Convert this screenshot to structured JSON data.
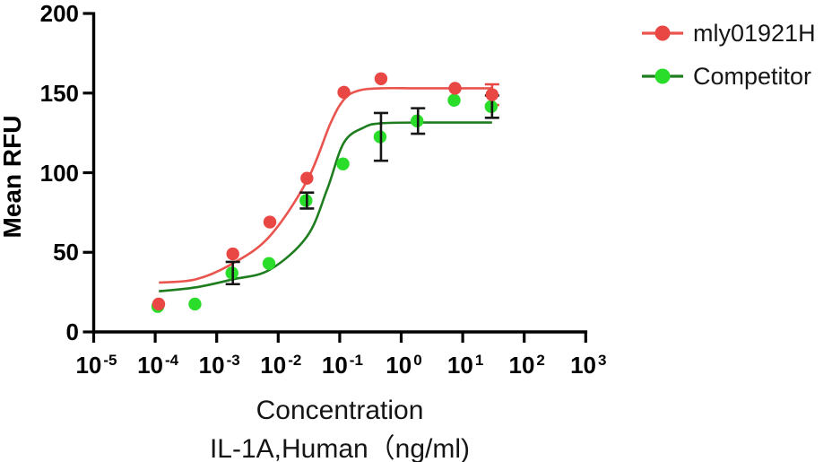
{
  "figure": {
    "background": "#ffffff",
    "axis_color": "#000000"
  },
  "chart_data": {
    "type": "scatter",
    "title": "",
    "ylabel": "Mean RFU",
    "xlabel_line1": "Concentration",
    "xlabel_line2": "IL-1A,Human（ng/ml)",
    "x_scale": "log10",
    "x_tick_base": "10",
    "x_tick_exponents": [
      -5,
      -4,
      -3,
      -2,
      -1,
      0,
      1,
      2,
      3
    ],
    "y_ticks": [
      0,
      50,
      100,
      150,
      200
    ],
    "ylim": [
      0,
      200
    ],
    "x_units": "ng/ml",
    "legend_position": "top-right",
    "grid": false,
    "series": [
      {
        "name": "mly01921H",
        "marker_color": "#e94743",
        "curve_color": "#ea544e",
        "error_color": "#e94743",
        "points": [
          {
            "x": 0.000114,
            "y": 17.5
          },
          {
            "x": 0.00183,
            "y": 49
          },
          {
            "x": 0.00732,
            "y": 69
          },
          {
            "x": 0.0293,
            "y": 96.5
          },
          {
            "x": 0.117,
            "y": 150.5
          },
          {
            "x": 0.469,
            "y": 159
          },
          {
            "x": 7.5,
            "y": 153
          },
          {
            "x": 30,
            "y": 149,
            "err": 6.5
          }
        ],
        "fit_curve_log10x_rfu": [
          [
            -3.94,
            31
          ],
          [
            -3.34,
            33
          ],
          [
            -2.74,
            43
          ],
          [
            -2.14,
            60
          ],
          [
            -1.53,
            95
          ],
          [
            -1.15,
            131
          ],
          [
            -0.93,
            146
          ],
          [
            -0.7,
            151.5
          ],
          [
            -0.33,
            153
          ],
          [
            0.3,
            153
          ],
          [
            1.477,
            153
          ]
        ]
      },
      {
        "name": "Competitor",
        "marker_color": "#2bdd2b",
        "curve_color": "#1e7d1e",
        "error_color": "#161616",
        "points": [
          {
            "x": 0.000114,
            "y": 16
          },
          {
            "x": 0.000458,
            "y": 17.5
          },
          {
            "x": 0.00183,
            "y": 37,
            "err": 7
          },
          {
            "x": 0.00732,
            "y": 43
          },
          {
            "x": 0.0293,
            "y": 82.5,
            "err": 5
          },
          {
            "x": 0.117,
            "y": 105.5
          },
          {
            "x": 0.469,
            "y": 122.5,
            "err": 15
          },
          {
            "x": 1.875,
            "y": 132.5,
            "err": 8
          },
          {
            "x": 7.5,
            "y": 145.5
          },
          {
            "x": 30,
            "y": 141.5,
            "err": 7
          }
        ],
        "fit_curve_log10x_rfu": [
          [
            -3.94,
            25.5
          ],
          [
            -3.34,
            28
          ],
          [
            -2.74,
            33
          ],
          [
            -2.14,
            39
          ],
          [
            -1.53,
            60
          ],
          [
            -1.2,
            90
          ],
          [
            -0.93,
            119
          ],
          [
            -0.6,
            128.5
          ],
          [
            -0.33,
            131
          ],
          [
            0.3,
            131.5
          ],
          [
            1.477,
            131.5
          ]
        ]
      }
    ]
  }
}
